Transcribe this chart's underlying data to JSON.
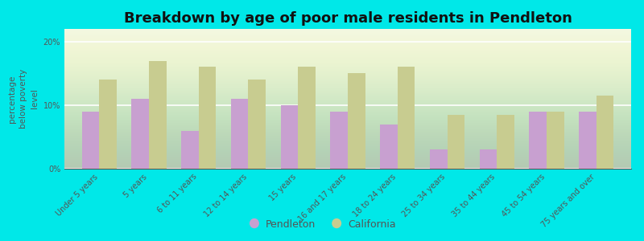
{
  "title": "Breakdown by age of poor male residents in Pendleton",
  "categories": [
    "Under 5 years",
    "5 years",
    "6 to 11 years",
    "12 to 14 years",
    "15 years",
    "16 and 17 years",
    "18 to 24 years",
    "25 to 34 years",
    "35 to 44 years",
    "45 to 54 years",
    "75 years and over"
  ],
  "pendleton": [
    9.0,
    11.0,
    6.0,
    11.0,
    10.0,
    9.0,
    7.0,
    3.0,
    3.0,
    9.0,
    9.0
  ],
  "california": [
    14.0,
    17.0,
    16.0,
    14.0,
    16.0,
    15.0,
    16.0,
    8.5,
    8.5,
    9.0,
    11.5
  ],
  "pendleton_color": "#c8a0d0",
  "california_color": "#c8cc90",
  "ylabel": "percentage\nbelow poverty\nlevel",
  "ylim": [
    0,
    22
  ],
  "yticks": [
    0,
    10,
    20
  ],
  "ytick_labels": [
    "0%",
    "10%",
    "20%"
  ],
  "title_fontsize": 13,
  "axis_label_fontsize": 7.5,
  "tick_fontsize": 7.0,
  "legend_fontsize": 9,
  "bar_width": 0.35,
  "outer_bg": "#00e8e8",
  "plot_bg": "#f0f5e0",
  "grid_color": "#e0e8d0",
  "text_color": "#555555"
}
